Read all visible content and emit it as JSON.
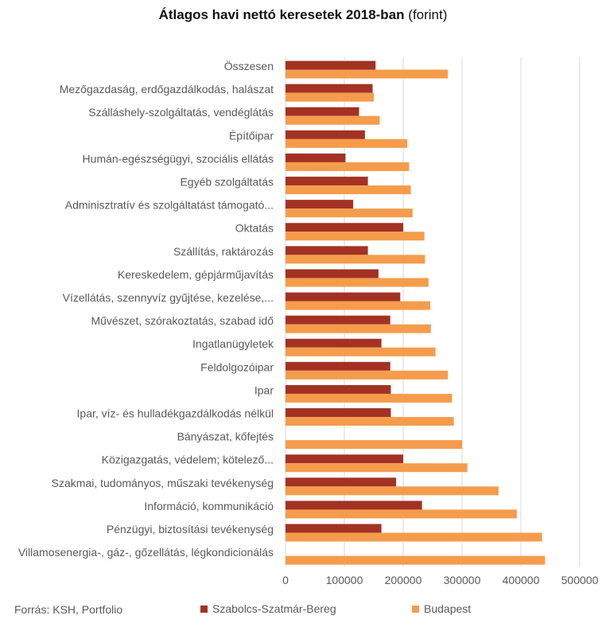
{
  "chart_data": {
    "type": "bar",
    "orientation": "horizontal",
    "title": "Átlagos havi nettó keresetek 2018-ban",
    "subtitle": "(forint)",
    "source": "Forrás: KSH, Portfolio",
    "xlim": [
      0,
      500000
    ],
    "x_ticks": [
      "0",
      "100000",
      "200000",
      "300000",
      "400000",
      "500000"
    ],
    "grid": true,
    "legend_position": "bottom",
    "categories": [
      "Összesen",
      "Mezőgazdaság, erdőgazdálkodás, halászat",
      "Szálláshely-szolgáltatás, vendéglátás",
      "Építőipar",
      "Humán-egészségügyi, szociális ellátás",
      "Egyéb szolgáltatás",
      "Adminisztratív és szolgáltatást támogató...",
      "Oktatás",
      "Szállítás, raktározás",
      "Kereskedelem, gépjárműjavítás",
      "Vízellátás, szennyvíz gyűjtése, kezelése,...",
      "Művészet, szórakoztatás, szabad idő",
      "Ingatlanügyletek",
      "Feldolgozóipar",
      "Ipar",
      "Ipar, víz- és hulladékgazdálkodás nélkül",
      "Bányászat, kőfejtés",
      "Közigazgatás, védelem; kötelező...",
      "Szakmai, tudományos, műszaki tevékenység",
      "Információ, kommunikáció",
      "Pénzügyi, biztosítási tevékenység",
      "Villamosenergia-, gáz-, gőzellátás, légkondicionálás"
    ],
    "series": [
      {
        "name": "Szabolcs-Szatmár-Bereg",
        "color": "#a33223",
        "values": [
          153000,
          148000,
          125000,
          135000,
          102000,
          140000,
          115000,
          200000,
          140000,
          158000,
          195000,
          178000,
          163000,
          178000,
          179000,
          179000,
          0,
          200000,
          188000,
          232000,
          163000,
          0
        ]
      },
      {
        "name": "Budapest",
        "color": "#f59c4c",
        "values": [
          276000,
          150000,
          160000,
          207000,
          210000,
          213000,
          216000,
          236000,
          237000,
          243000,
          246000,
          247000,
          255000,
          276000,
          283000,
          286000,
          300000,
          309000,
          362000,
          393000,
          436000,
          441000
        ]
      }
    ]
  }
}
